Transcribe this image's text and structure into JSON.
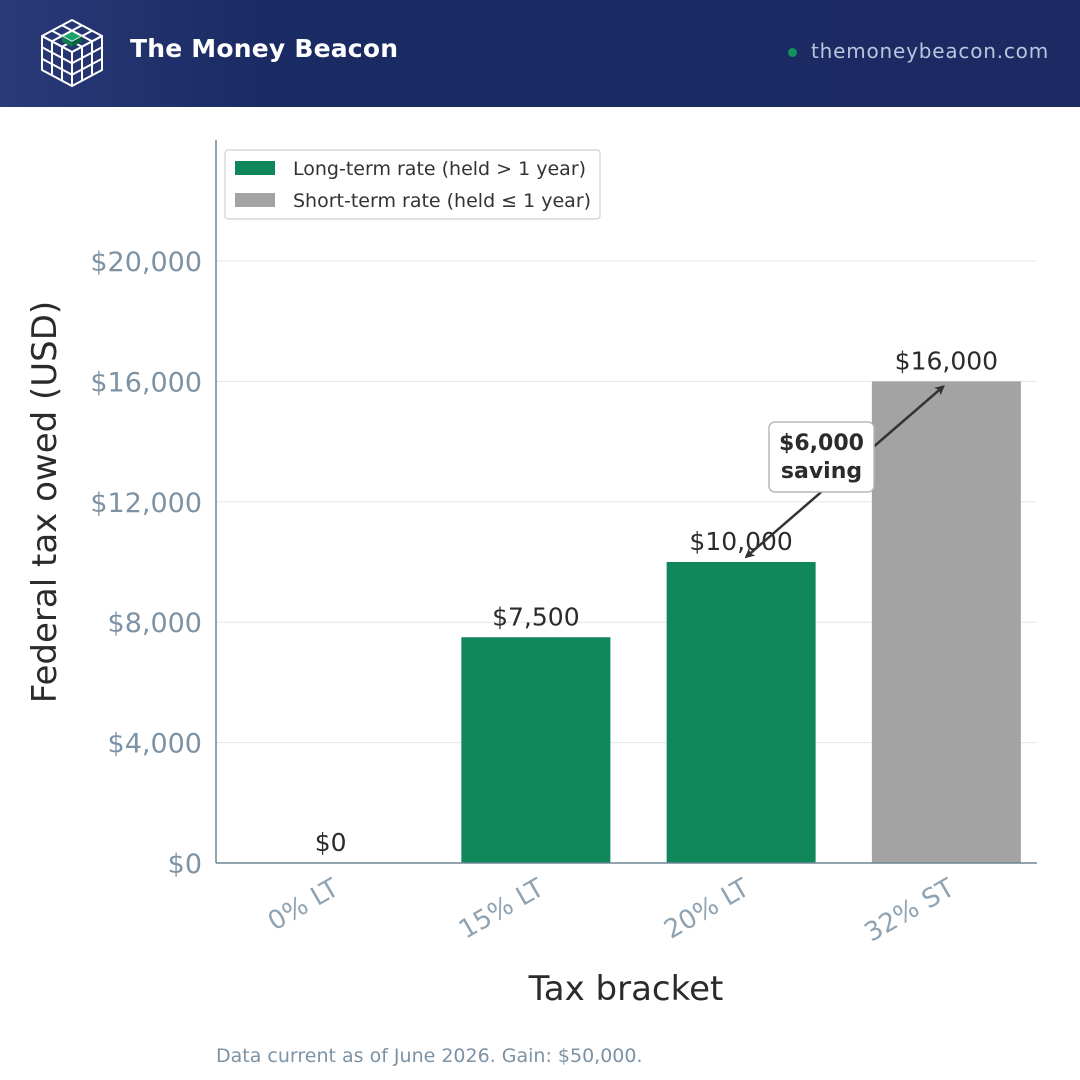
{
  "header": {
    "brand": "The Money Beacon",
    "site": "themoneybeacon.com"
  },
  "chart_data": {
    "type": "bar",
    "categories": [
      "0% LT",
      "15% LT",
      "20% LT",
      "32% ST"
    ],
    "values": [
      0,
      7500,
      10000,
      16000
    ],
    "value_labels": [
      "$0",
      "$7,500",
      "$10,000",
      "$16,000"
    ],
    "series_type": [
      "long",
      "long",
      "long",
      "short"
    ],
    "legend": [
      {
        "name": "Long-term rate (held > 1 year)",
        "color": "#10875a"
      },
      {
        "name": "Short-term rate (held ≤ 1 year)",
        "color": "#a3a3a3"
      }
    ],
    "legend_position": "top-left",
    "xlabel": "Tax bracket",
    "ylabel": "Federal tax owed (USD)",
    "ylim": [
      0,
      24000
    ],
    "yticks": [
      0,
      4000,
      8000,
      12000,
      16000,
      20000
    ],
    "ytick_labels": [
      "$0",
      "$4,000",
      "$8,000",
      "$12,000",
      "$16,000",
      "$20,000"
    ],
    "grid": true,
    "annotation": {
      "lines": [
        "$6,000",
        "saving"
      ],
      "from_category": "20% LT",
      "to_category": "32% ST"
    },
    "colors": {
      "long": "#10875a",
      "short": "#a3a3a3"
    }
  },
  "footnote": "Data current as of June 2026. Gain: $50,000."
}
